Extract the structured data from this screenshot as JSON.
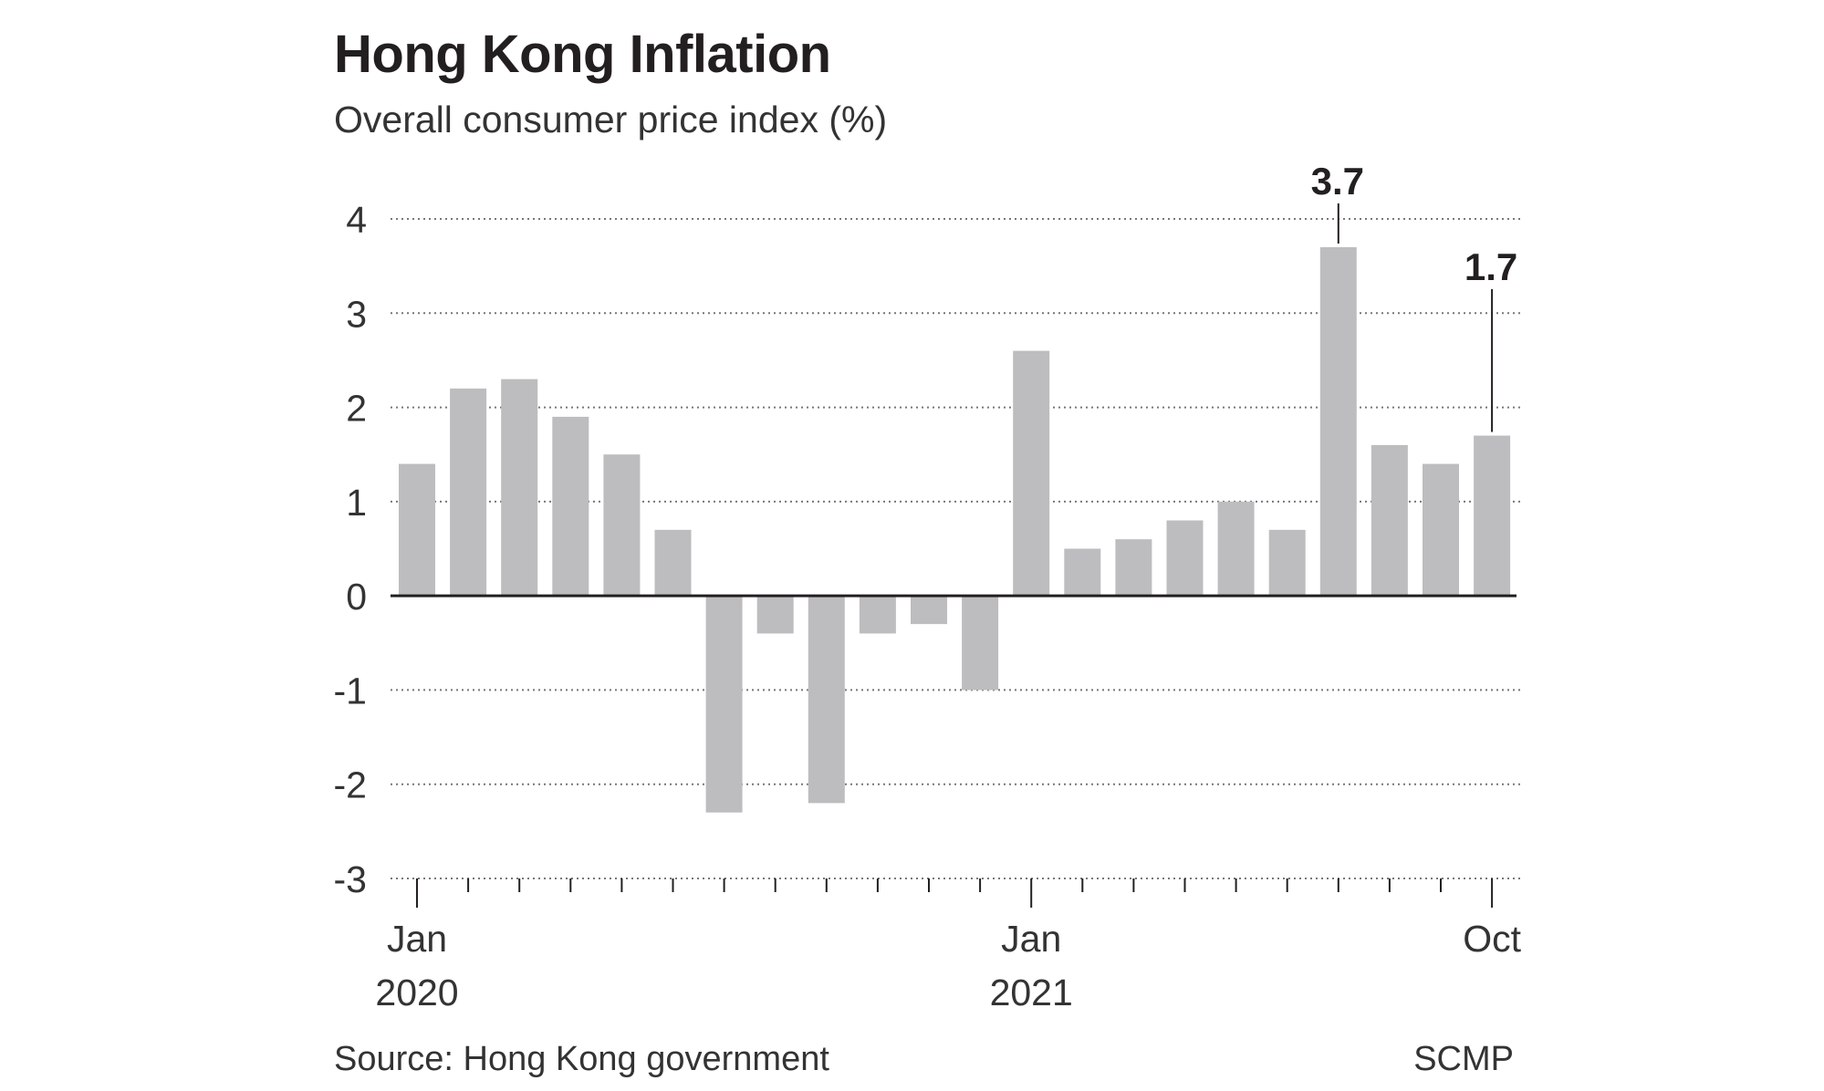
{
  "chart_data": {
    "type": "bar",
    "title": "Hong Kong Inflation",
    "subtitle": "Overall consumer price index (%)",
    "categories": [
      "Jan 2020",
      "Feb 2020",
      "Mar 2020",
      "Apr 2020",
      "May 2020",
      "Jun 2020",
      "Jul 2020",
      "Aug 2020",
      "Sep 2020",
      "Oct 2020",
      "Nov 2020",
      "Dec 2020",
      "Jan 2021",
      "Feb 2021",
      "Mar 2021",
      "Apr 2021",
      "May 2021",
      "Jun 2021",
      "Jul 2021",
      "Aug 2021",
      "Sep 2021",
      "Oct 2021"
    ],
    "values": [
      1.4,
      2.2,
      2.3,
      1.9,
      1.5,
      0.7,
      -2.3,
      -0.4,
      -2.2,
      -0.4,
      -0.3,
      -1.0,
      2.6,
      0.5,
      0.6,
      0.8,
      1.0,
      0.7,
      3.7,
      1.6,
      1.4,
      1.7
    ],
    "ylim": [
      -3,
      4
    ],
    "yticks": [
      4,
      3,
      2,
      1,
      0,
      -1,
      -2,
      -3
    ],
    "xtick_labels": [
      {
        "index": 0,
        "line1": "Jan",
        "line2": "2020"
      },
      {
        "index": 12,
        "line1": "Jan",
        "line2": "2021"
      },
      {
        "index": 21,
        "line1": "Oct",
        "line2": ""
      }
    ],
    "callouts": [
      {
        "index": 18,
        "label": "3.7"
      },
      {
        "index": 21,
        "label": "1.7"
      }
    ],
    "grid": true,
    "xlabel": "",
    "ylabel": "",
    "colors": {
      "bar": "#bdbdc0",
      "text": "#231f20",
      "grid": "#777777",
      "axis": "#231f20"
    }
  },
  "footer": {
    "source": "Source: Hong Kong government",
    "credit": "SCMP"
  }
}
